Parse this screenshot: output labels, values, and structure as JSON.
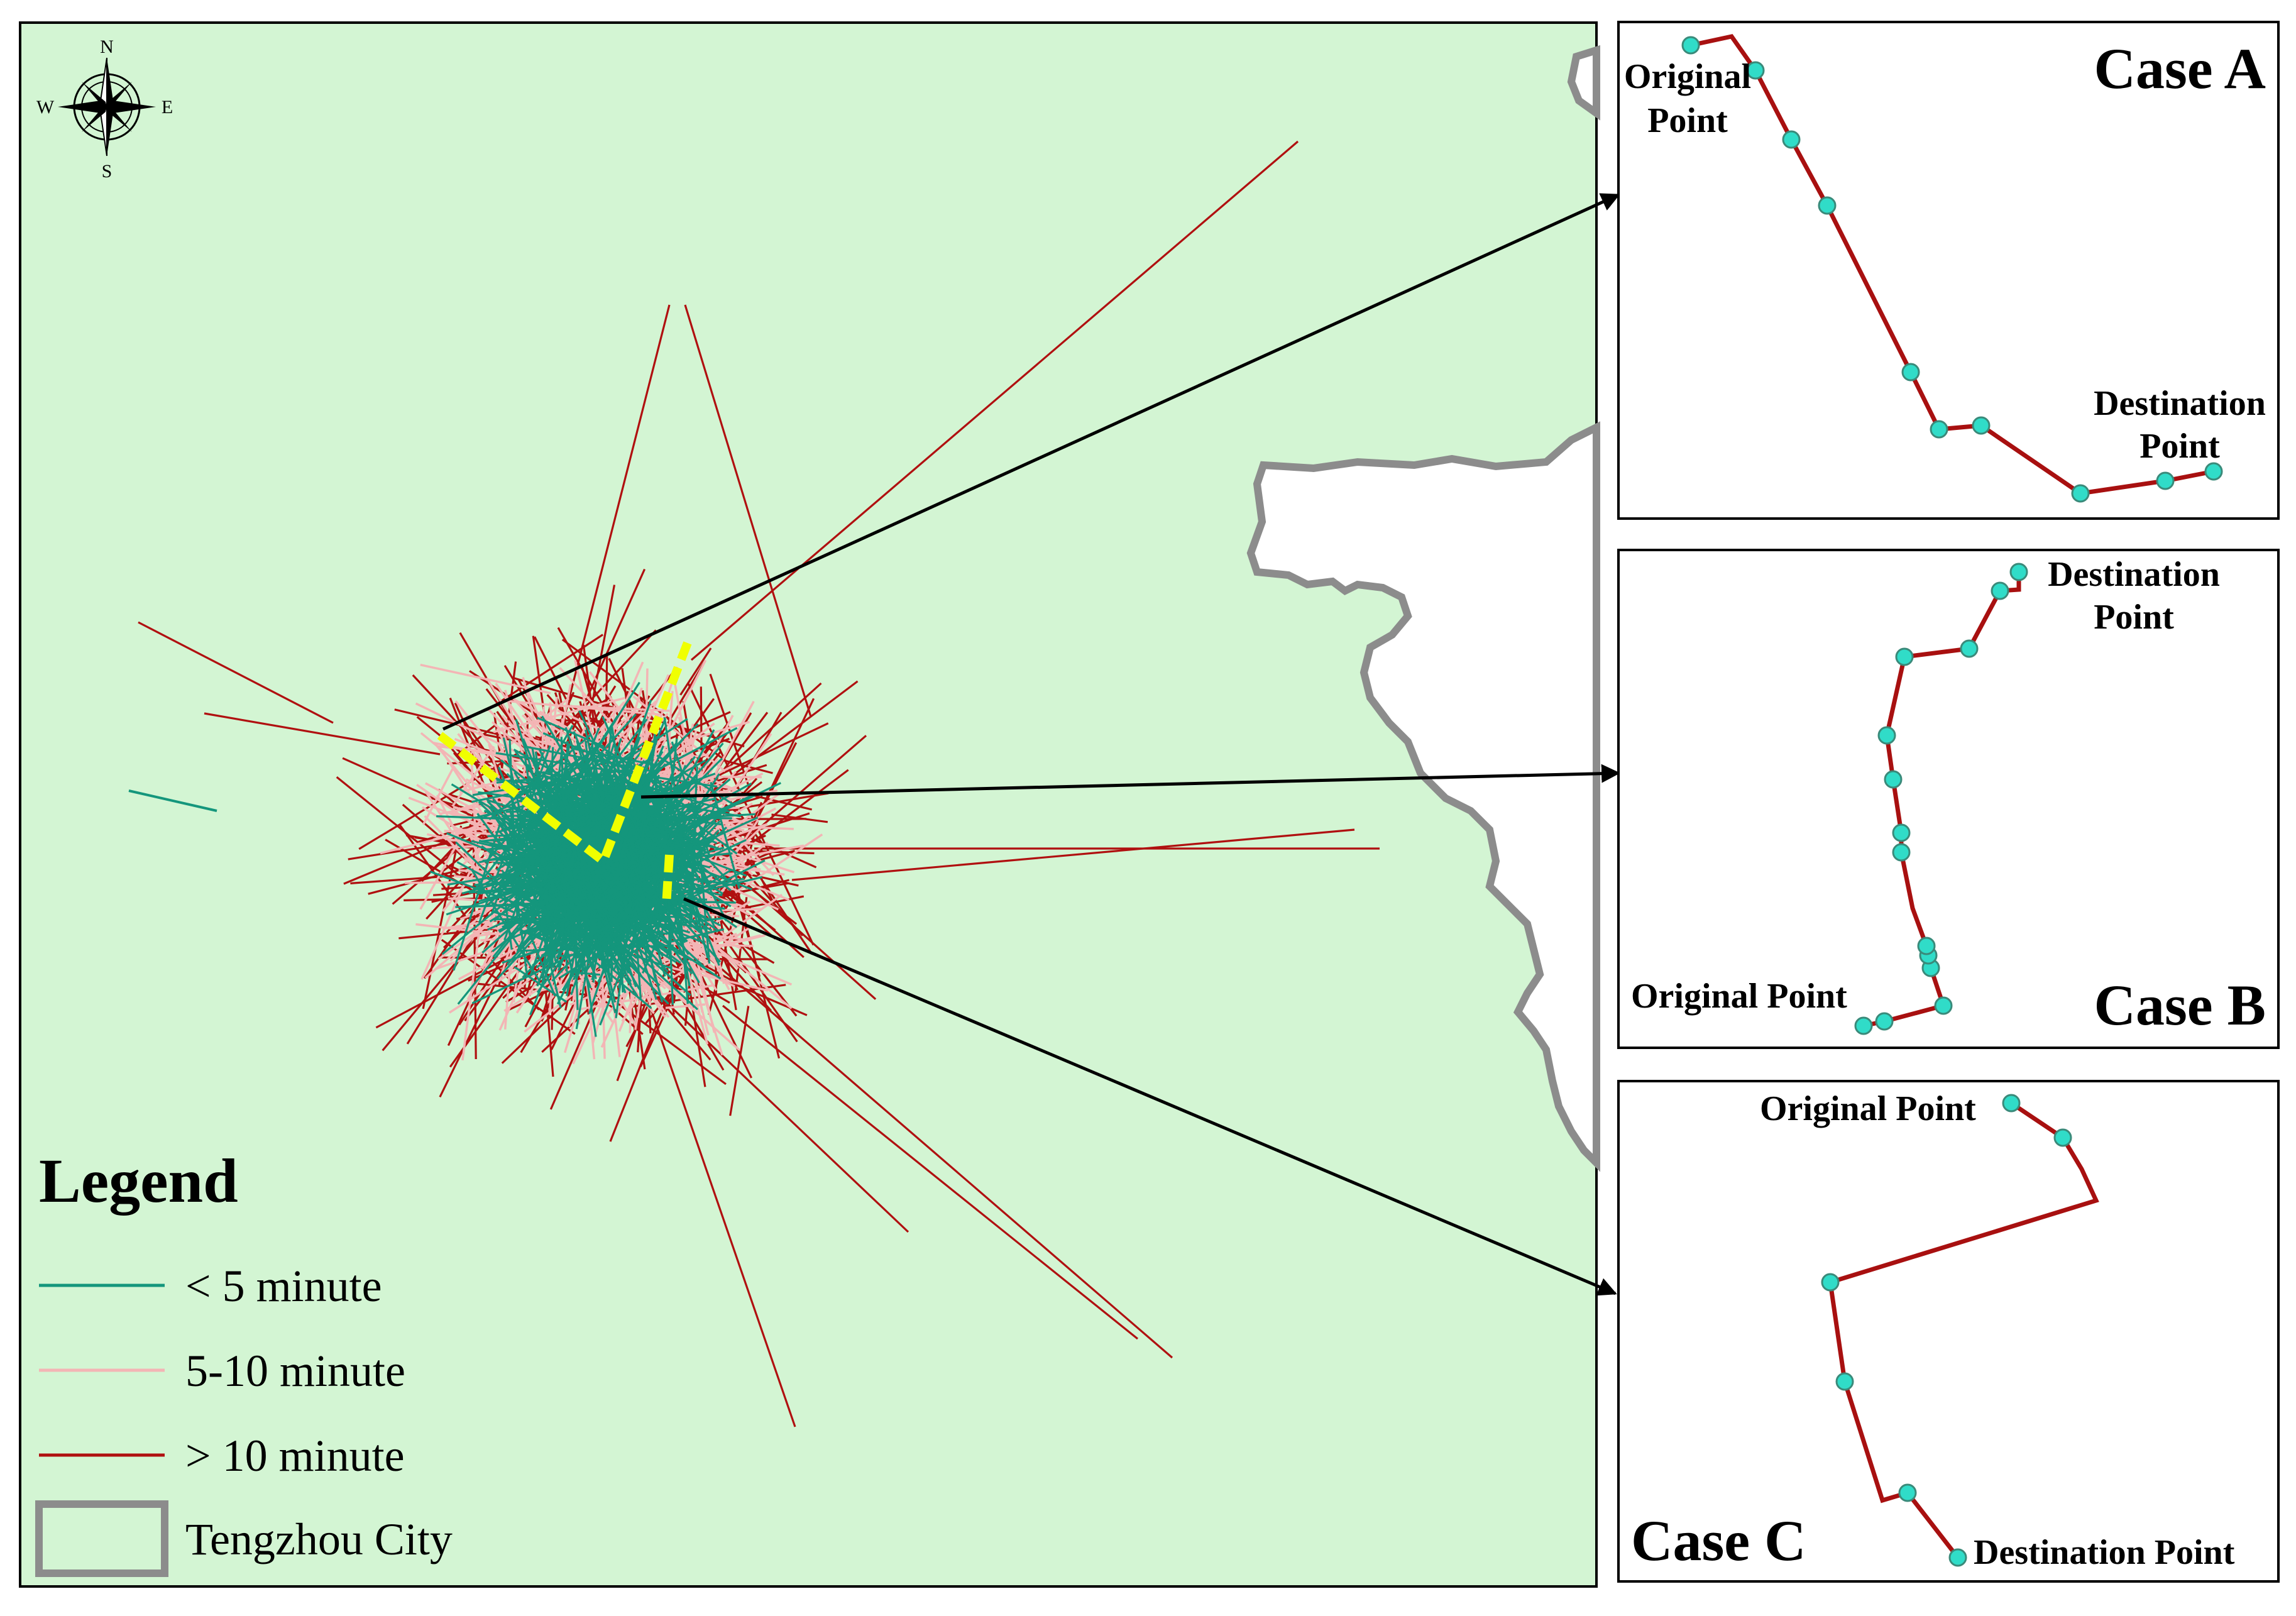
{
  "colors": {
    "map_background": "#d3f5d3",
    "short_trip": "#14967c",
    "medium_trip": "#f3b5b5",
    "long_trip": "#b01010",
    "route": "#a81010",
    "route_point": "#30dcc8",
    "highlight_path": "#f0ff00",
    "boundary": "#8c8c8c"
  },
  "compass": {
    "north": "N",
    "south": "S",
    "east": "E",
    "west": "W",
    "icon": "compass-rose-icon"
  },
  "legend": {
    "title": "Legend",
    "items": [
      {
        "label": "< 5 minute",
        "color": "#14967c",
        "symbol": "line"
      },
      {
        "label": "5-10 minute",
        "color": "#f3b5b5",
        "symbol": "line"
      },
      {
        "label": "> 10 minute",
        "color": "#b01010",
        "symbol": "line"
      },
      {
        "label": "Tengzhou City",
        "color": "#d3f5d3",
        "symbol": "boundary-box"
      }
    ]
  },
  "cases": [
    {
      "title": "Case A",
      "origin_label_line1": "Original",
      "origin_label_line2": "Point",
      "destination_label_line1": "Destination",
      "destination_label_line2": "Point"
    },
    {
      "title": "Case B",
      "origin_label": "Original Point",
      "destination_label_line1": "Destination",
      "destination_label_line2": "Point"
    },
    {
      "title": "Case C",
      "origin_label": "Original Point",
      "destination_label": "Destination Point"
    }
  ]
}
